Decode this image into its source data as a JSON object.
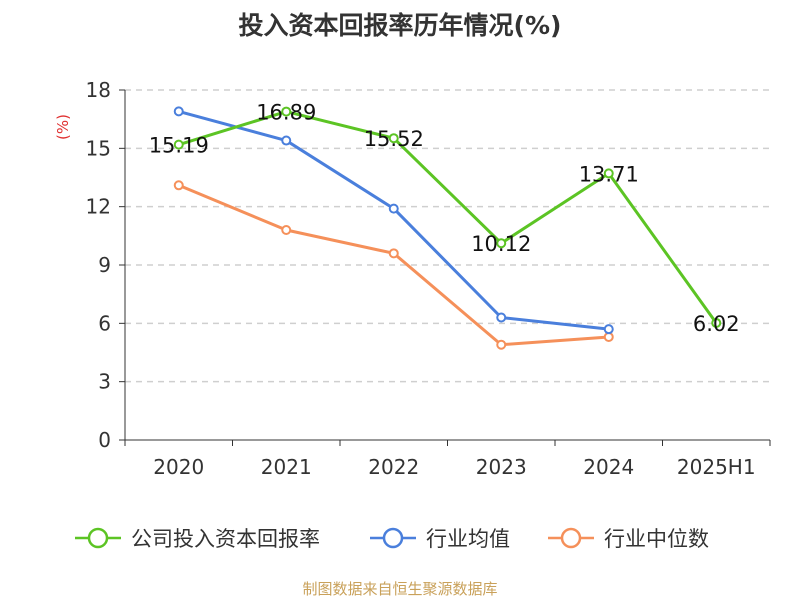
{
  "title": "投入资本回报率历年情况(%)",
  "source": "制图数据来自恒生聚源数据库",
  "chart_data": {
    "type": "line",
    "title": "投入资本回报率历年情况(%)",
    "ylabel": "(%)",
    "xlabel": "",
    "categories": [
      "2020",
      "2021",
      "2022",
      "2023",
      "2024",
      "2025H1"
    ],
    "ylim": [
      0,
      18
    ],
    "yticks": [
      0,
      3,
      6,
      9,
      12,
      15,
      18
    ],
    "grid": true,
    "legend_position": "bottom",
    "series": [
      {
        "name": "公司投入资本回报率",
        "color": "#5cc424",
        "values": [
          15.19,
          16.89,
          15.52,
          10.12,
          13.71,
          6.02
        ],
        "labels": [
          "15.19",
          "16.89",
          "15.52",
          "10.12",
          "13.71",
          "6.02"
        ]
      },
      {
        "name": "行业均值",
        "color": "#4a7fdc",
        "values": [
          16.9,
          15.4,
          11.9,
          6.3,
          5.7,
          null
        ]
      },
      {
        "name": "行业中位数",
        "color": "#f5905a",
        "values": [
          13.1,
          10.8,
          9.6,
          4.9,
          5.3,
          null
        ]
      }
    ]
  }
}
